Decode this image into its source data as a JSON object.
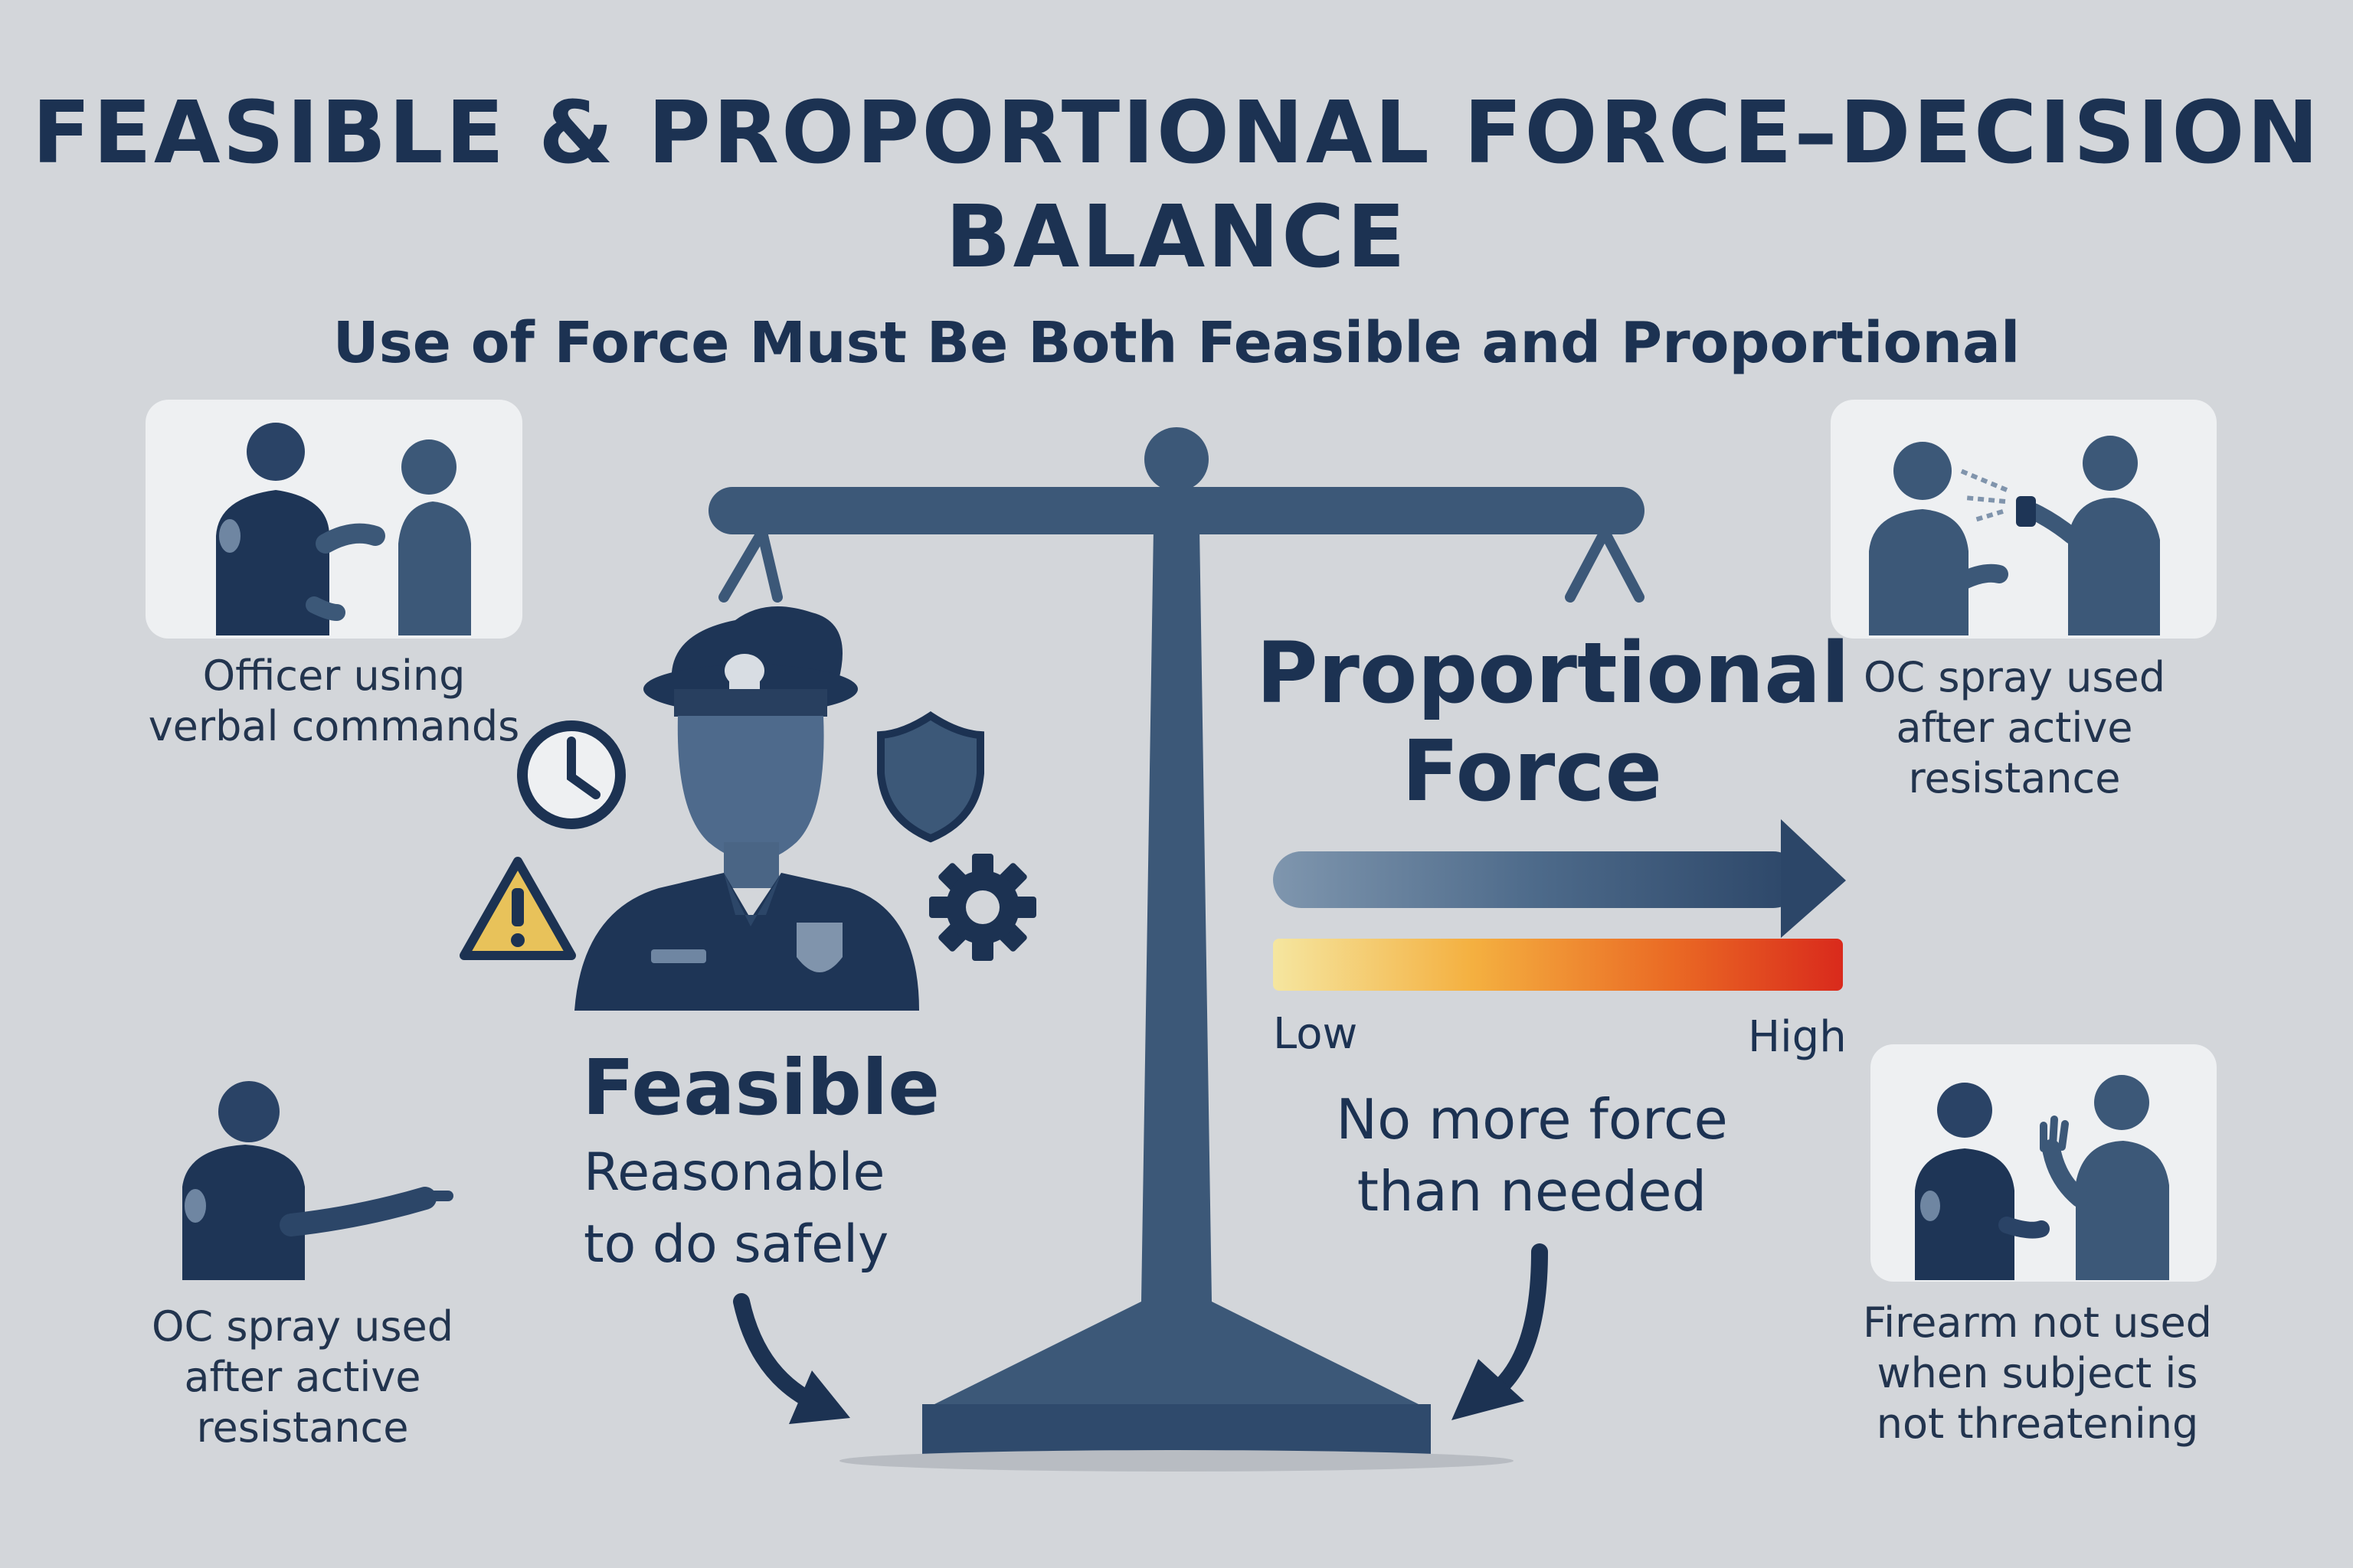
{
  "header": {
    "title_line1": "FEASIBLE & PROPORTIONAL FORCE–DECISION",
    "title_line2": "BALANCE",
    "subtitle": "Use of Force Must Be Both Feasible and Proportional"
  },
  "scenarios": {
    "top_left": "Officer using\nverbal commands",
    "bottom_left": "OC spray used\nafter active resistance",
    "top_right": "OC spray used\nafter active resistance",
    "bottom_right": "Firearm not used\nwhen subject is\nnot threatening"
  },
  "feasible": {
    "heading": "Feasible",
    "description": "Reasonable\nto do safely"
  },
  "proportional": {
    "heading": "Proportional\nForce",
    "scale_low": "Low",
    "scale_high": "High",
    "description": "No more force\nthan needed"
  },
  "icons": [
    "clock-icon",
    "shield-icon",
    "warning-icon",
    "gear-icon",
    "officer-icon",
    "balance-scale-icon"
  ],
  "colors": {
    "background": "#d3d6da",
    "navy": "#1c3252",
    "slate": "#3c5878",
    "gradient_low": "#f5e6a0",
    "gradient_high": "#d92a1c"
  }
}
